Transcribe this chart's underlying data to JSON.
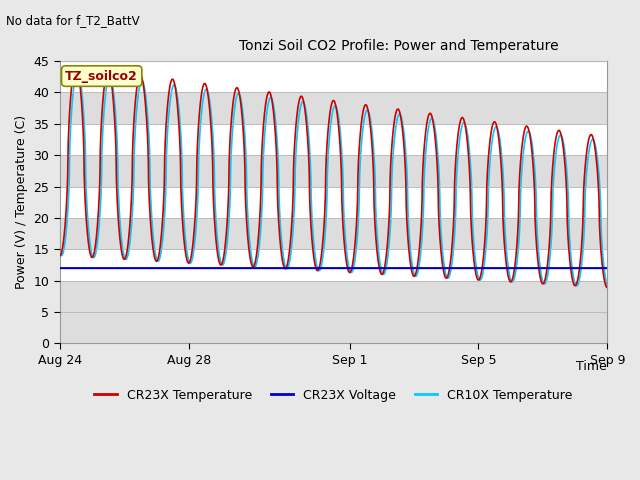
{
  "title": "Tonzi Soil CO2 Profile: Power and Temperature",
  "no_data_text": "No data for f_T2_BattV",
  "ylabel": "Power (V) / Temperature (C)",
  "xlabel": "Time",
  "ylim": [
    0,
    45
  ],
  "yticks": [
    0,
    5,
    10,
    15,
    20,
    25,
    30,
    35,
    40,
    45
  ],
  "bg_color": "#e8e8e8",
  "plot_bg_color": "#ffffff",
  "stripe_color": "#dddddd",
  "legend_label_box": "TZ_soilco2",
  "legend_box_color": "#ffffcc",
  "legend_box_edge": "#888800",
  "series": {
    "CR23X_temp": {
      "color": "#cc0000",
      "label": "CR23X Temperature",
      "lw": 1.2
    },
    "CR23X_volt": {
      "color": "#0000cc",
      "label": "CR23X Voltage",
      "lw": 1.5
    },
    "CR10X_temp": {
      "color": "#00ccff",
      "label": "CR10X Temperature",
      "lw": 1.2
    }
  },
  "xtick_labels": [
    "Aug 24",
    "Aug 28",
    "Sep 1",
    "Sep 5",
    "Sep 9"
  ],
  "xtick_positions": [
    0,
    4,
    9,
    13,
    17
  ],
  "figsize": [
    6.4,
    4.8
  ],
  "dpi": 100
}
